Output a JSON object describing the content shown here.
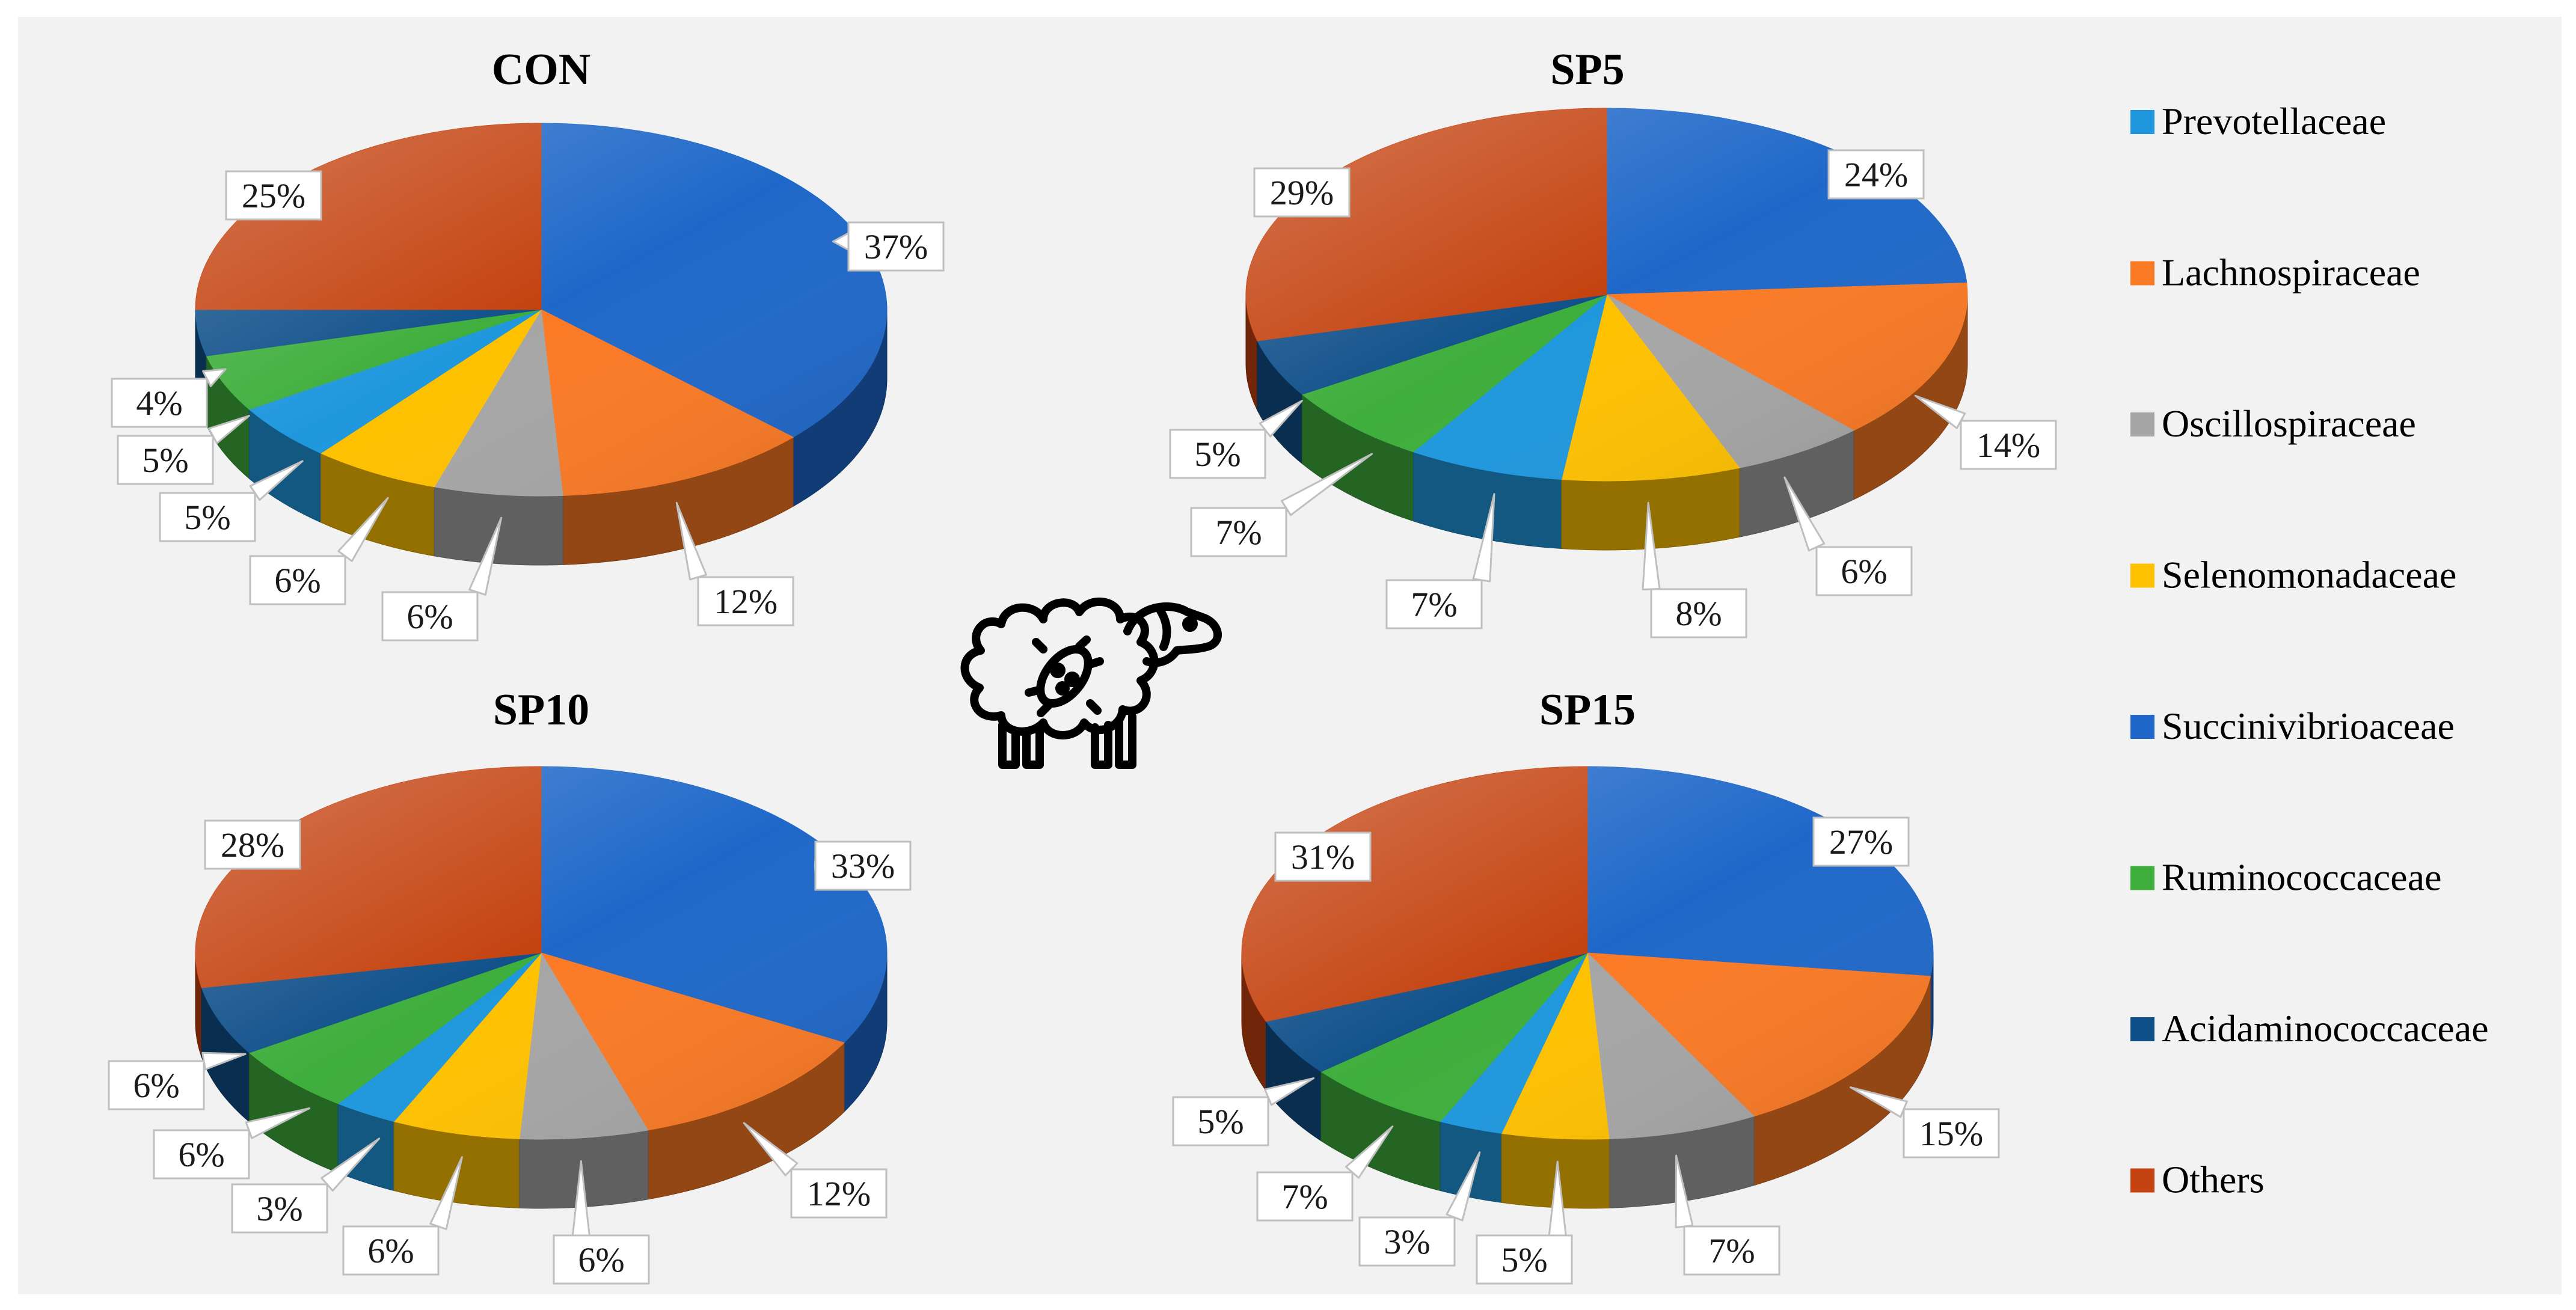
{
  "legend": [
    {
      "label": "Prevotellaceae",
      "color": "#1f97dd"
    },
    {
      "label": "Lachnospiraceae",
      "color": "#fb7a25"
    },
    {
      "label": "Oscillospiraceae",
      "color": "#a6a6a6"
    },
    {
      "label": "Selenomonadaceae",
      "color": "#fec100"
    },
    {
      "label": "Succinivibrioaceae",
      "color": "#1f68c9"
    },
    {
      "label": "Ruminococcaceae",
      "color": "#3eae3c"
    },
    {
      "label": "Acidaminococcaceae",
      "color": "#10508a"
    },
    {
      "label": "Others",
      "color": "#c4420f"
    }
  ],
  "icon": "sheep-with-microbe-icon",
  "chart_data": [
    {
      "type": "pie",
      "title": "CON",
      "categories": [
        "Succinivibrioaceae",
        "Lachnospiraceae",
        "Oscillospiraceae",
        "Selenomonadaceae",
        "Prevotellaceae",
        "Ruminococcaceae",
        "Acidaminococcaceae",
        "Others"
      ],
      "values": [
        37,
        12,
        6,
        6,
        5,
        5,
        4,
        25
      ],
      "labels": [
        "37%",
        "12%",
        "6%",
        "6%",
        "5%",
        "5%",
        "4%",
        "25%"
      ]
    },
    {
      "type": "pie",
      "title": "SP5",
      "categories": [
        "Succinivibrioaceae",
        "Lachnospiraceae",
        "Oscillospiraceae",
        "Selenomonadaceae",
        "Prevotellaceae",
        "Ruminococcaceae",
        "Acidaminococcaceae",
        "Others"
      ],
      "values": [
        24,
        14,
        6,
        8,
        7,
        7,
        5,
        29
      ],
      "labels": [
        "24%",
        "14%",
        "6%",
        "8%",
        "7%",
        "7%",
        "5%",
        "29%"
      ]
    },
    {
      "type": "pie",
      "title": "SP10",
      "categories": [
        "Succinivibrioaceae",
        "Lachnospiraceae",
        "Oscillospiraceae",
        "Selenomonadaceae",
        "Prevotellaceae",
        "Ruminococcaceae",
        "Acidaminococcaceae",
        "Others"
      ],
      "values": [
        33,
        12,
        6,
        6,
        3,
        6,
        6,
        28
      ],
      "labels": [
        "33%",
        "12%",
        "6%",
        "6%",
        "3%",
        "6%",
        "6%",
        "28%"
      ]
    },
    {
      "type": "pie",
      "title": "SP15",
      "categories": [
        "Succinivibrioaceae",
        "Lachnospiraceae",
        "Oscillospiraceae",
        "Selenomonadaceae",
        "Prevotellaceae",
        "Ruminococcaceae",
        "Acidaminococcaceae",
        "Others"
      ],
      "values": [
        27,
        15,
        7,
        5,
        3,
        7,
        5,
        31
      ],
      "labels": [
        "27%",
        "15%",
        "7%",
        "5%",
        "3%",
        "7%",
        "5%",
        "31%"
      ]
    }
  ]
}
